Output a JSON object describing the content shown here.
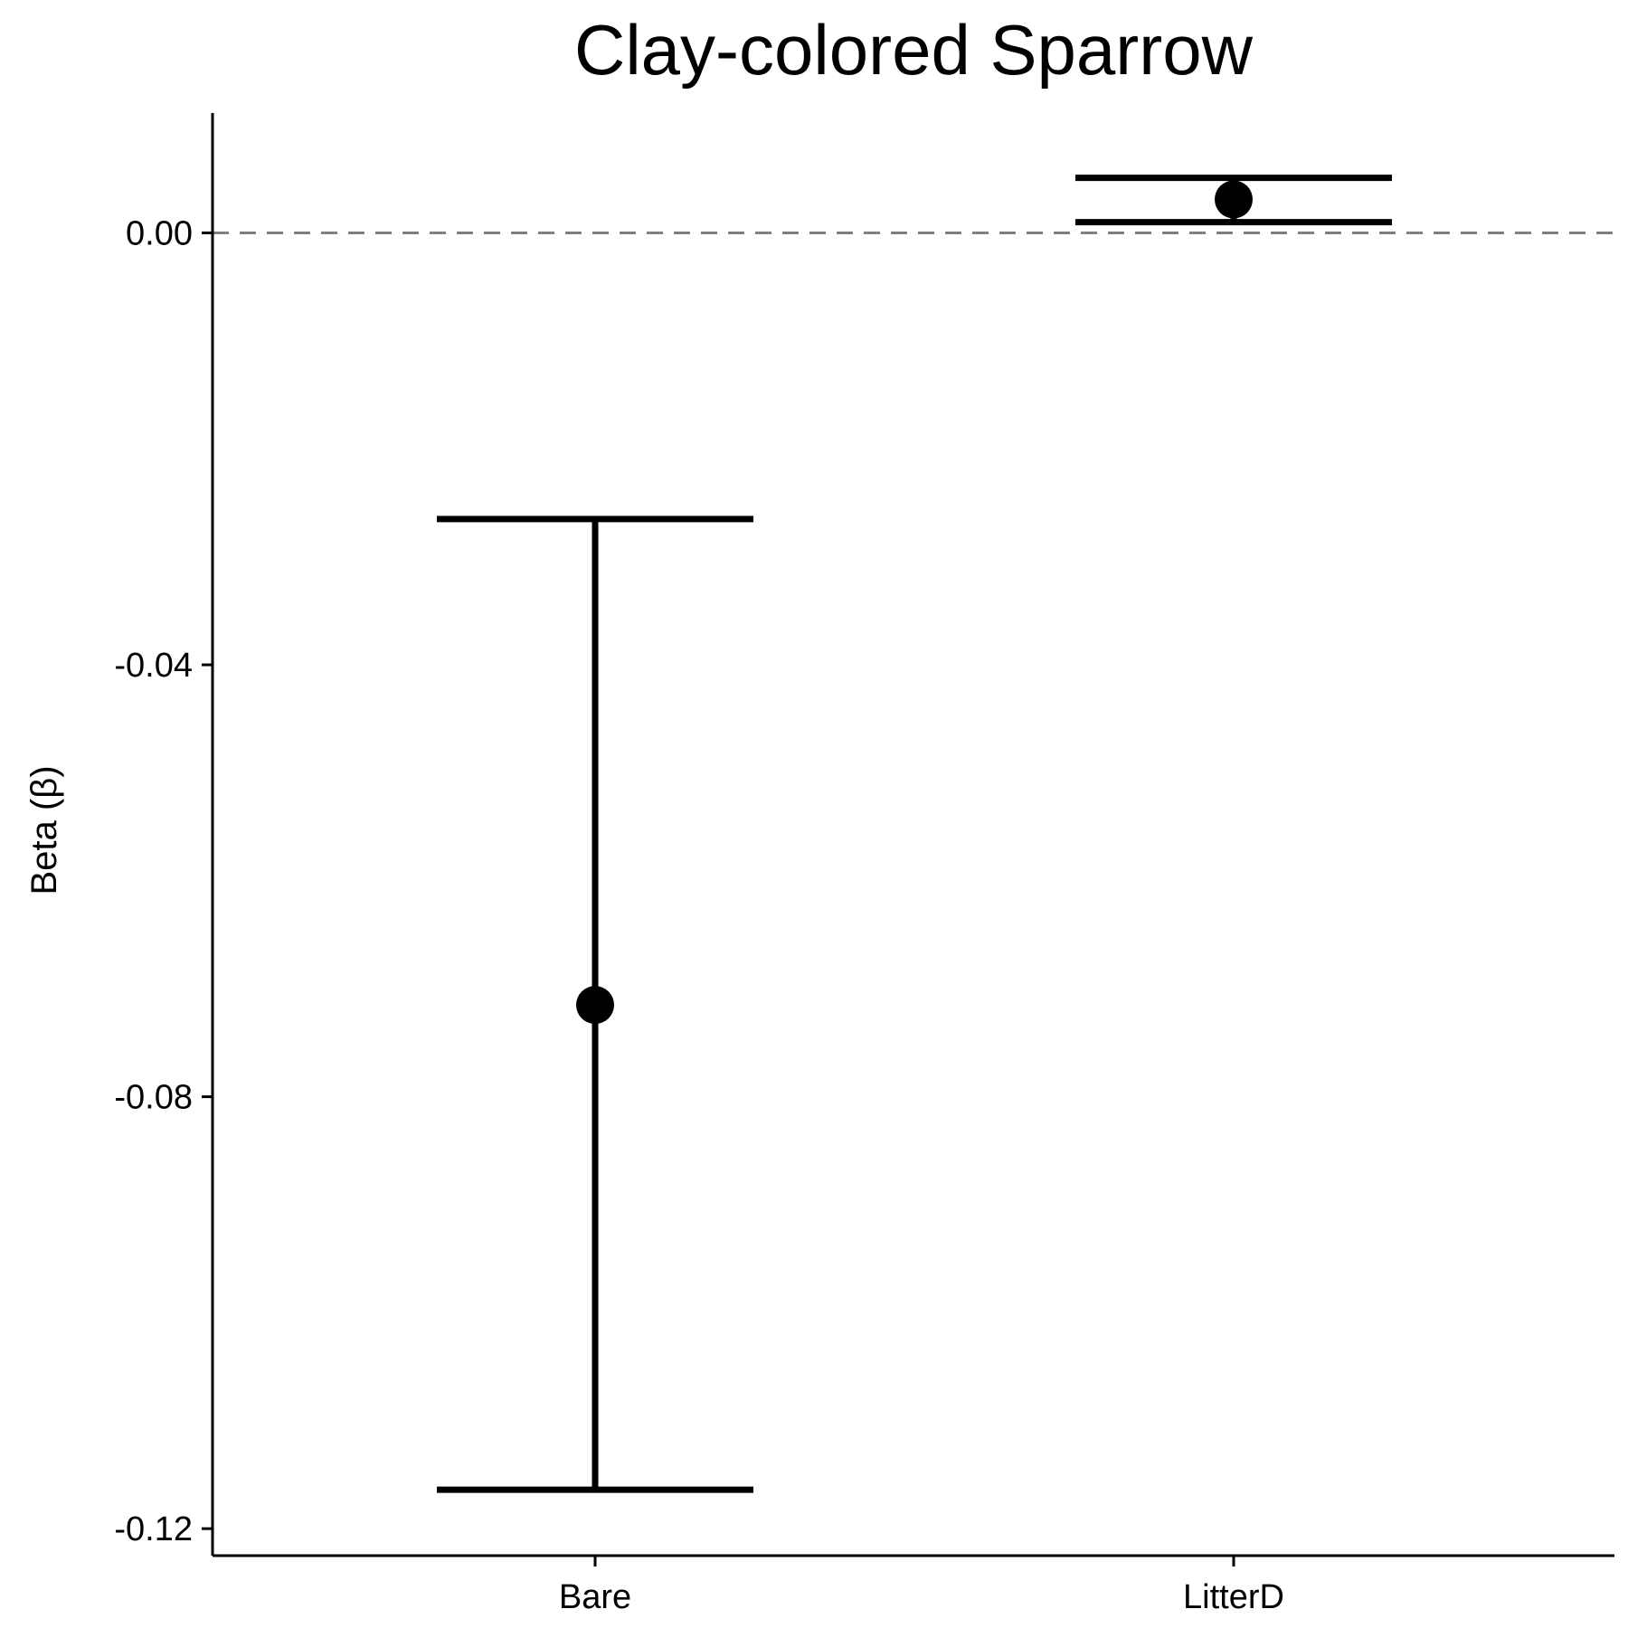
{
  "chart_data": {
    "type": "errorbar",
    "title": "Clay-colored Sparrow",
    "xlabel": "",
    "ylabel": "Beta (β)",
    "categories": [
      "Bare",
      "LitterD"
    ],
    "estimate": [
      -0.0715,
      0.0031
    ],
    "lower": [
      -0.1164,
      0.001
    ],
    "upper": [
      -0.0265,
      0.0051
    ],
    "ylim": [
      -0.1225,
      0.0111
    ],
    "yticks": [
      0.0,
      -0.04,
      -0.08,
      -0.12
    ],
    "ytick_labels": [
      "0.00",
      "-0.04",
      "-0.08",
      "-0.12"
    ],
    "reference_line": {
      "y": 0,
      "style": "dashed",
      "color": "#808080"
    },
    "colors": {
      "marks": "#000000",
      "axis": "#000000"
    },
    "grid": false,
    "legend": "none"
  }
}
